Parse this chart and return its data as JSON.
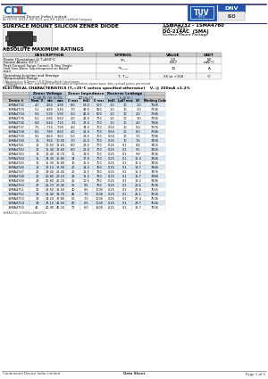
{
  "title_left": "SURFACE MOUNT SILICON ZENER DIODE",
  "title_right_line1": "1SMA4732 - 1SMA4760",
  "title_right_line2": "(4V7 - 68V)",
  "title_right_line3": "DO-214AC  (SMA)",
  "title_right_line4": "Surface Mount Package",
  "company_name": "Continental Device India Limited",
  "company_sub": "An ISO/TS 16949, ISO 9001 and ISO 14001 Certified Company",
  "abs_max_title": "ABSOLUTE MAXIMUM RATINGS",
  "abs_headers": [
    "DESCRIPTION",
    "SYMBOL",
    "VALUE",
    "UNIT"
  ],
  "footnote1": "* Mounted on 5.0mm² ( 0.013mm thick) land areas",
  "footnote2": "** Measured on 8.3ms, and single half sine-wave or equivalent square wave, duty cycle≤4 pulses per minute maximum",
  "elec_title": "ELECTRICAL CHARACTERISTICS (Tₐ=25°C unless specified otherwise)    V₂ @ 200mA ±1.2%",
  "data_rows": [
    [
      "1SMA4732",
      "4.7",
      "4.50",
      "4.90",
      "8.0",
      "53.0",
      "500",
      "1.0",
      "10",
      "1.0",
      "7326"
    ],
    [
      "1SMA4733",
      "5.1",
      "4.80",
      "5.40",
      "7.0",
      "49.0",
      "550",
      "1.0",
      "10",
      "1.0",
      "7336"
    ],
    [
      "1SMA4734",
      "5.6",
      "5.30",
      "5.90",
      "5.0",
      "46.0",
      "600",
      "1.0",
      "10",
      "2.0",
      "7346"
    ],
    [
      "1SMA4735",
      "6.2",
      "5.80",
      "6.60",
      "2.0",
      "41.0",
      "700",
      "1.0",
      "10",
      "3.0",
      "7356"
    ],
    [
      "1SMA4736",
      "6.8",
      "6.40",
      "7.10",
      "3.5",
      "37.0",
      "700",
      "1.0",
      "10",
      "4.0",
      "7366"
    ],
    [
      "1SMA4737",
      "7.5",
      "7.10",
      "7.90",
      "4.0",
      "34.0",
      "700",
      "0.50",
      "10",
      "5.0",
      "7376"
    ],
    [
      "1SMA4738",
      "8.2",
      "7.80",
      "8.60",
      "4.5",
      "31.0",
      "700",
      "0.50",
      "10",
      "6.0",
      "7386"
    ],
    [
      "1SMA4739",
      "9.1",
      "8.60",
      "9.60",
      "5.0",
      "28.0",
      "700",
      "0.50",
      "10",
      "7.0",
      "7396"
    ],
    [
      "1SMA4740",
      "10",
      "9.50",
      "10.50",
      "7.0",
      "25.0",
      "700",
      "0.25",
      "10",
      "7.6",
      "7406"
    ],
    [
      "1SMA4741",
      "11",
      "10.50",
      "11.60",
      "8.0",
      "23.0",
      "700",
      "0.25",
      "0.1",
      "8.4",
      "7416"
    ],
    [
      "1SMA4742",
      "12",
      "11.40",
      "12.60",
      "8.0",
      "21.0",
      "700",
      "0.25",
      "0.1",
      "9.1",
      "7426"
    ],
    [
      "1SMA4743",
      "13",
      "12.40",
      "13.70",
      "10",
      "19.0",
      "700",
      "0.25",
      "0.1",
      "9.9",
      "7436"
    ],
    [
      "1SMA4744",
      "15",
      "14.30",
      "15.80",
      "14",
      "17.0",
      "700",
      "0.25",
      "0.1",
      "11.4",
      "7446"
    ],
    [
      "1SMA4745",
      "16",
      "15.30",
      "16.80",
      "16",
      "15.5",
      "700",
      "0.25",
      "0.1",
      "12.2",
      "7456"
    ],
    [
      "1SMA4746",
      "18",
      "17.10",
      "18.90",
      "20",
      "14.0",
      "750",
      "0.25",
      "0.1",
      "13.7",
      "7466"
    ],
    [
      "1SMA4747",
      "20",
      "19.00",
      "21.00",
      "22",
      "12.5",
      "750",
      "0.25",
      "0.1",
      "15.3",
      "7476"
    ],
    [
      "1SMA4748",
      "22",
      "20.80",
      "23.10",
      "23",
      "11.5",
      "750",
      "0.25",
      "0.1",
      "16.7",
      "7486"
    ],
    [
      "1SMA4749",
      "24",
      "22.80",
      "25.20",
      "25",
      "10.5",
      "750",
      "0.25",
      "0.1",
      "18.2",
      "7496"
    ],
    [
      "1SMA4750",
      "27",
      "25.70",
      "28.40",
      "35",
      "9.5",
      "750",
      "0.25",
      "0.1",
      "20.6",
      "7506"
    ],
    [
      "1SMA4751",
      "30",
      "28.50",
      "31.50",
      "40",
      "8.5",
      "1000",
      "0.25",
      "0.1",
      "22.8",
      "7516"
    ],
    [
      "1SMA4752",
      "33",
      "31.40",
      "34.70",
      "45",
      "7.5",
      "1000",
      "0.25",
      "0.1",
      "25.1",
      "7526"
    ],
    [
      "1SMA4753",
      "36",
      "34.20",
      "37.80",
      "50",
      "7.0",
      "1000",
      "0.25",
      "0.1",
      "27.4",
      "7536"
    ],
    [
      "1SMA4754",
      "39",
      "37.10",
      "41.00",
      "60",
      "6.5",
      "1000",
      "0.25",
      "0.1",
      "29.7",
      "7546"
    ],
    [
      "1SMA4755",
      "43",
      "40.90",
      "45.20",
      "70",
      "6.0",
      "1500",
      "0.25",
      "0.1",
      "32.7",
      "7556"
    ]
  ],
  "footer_left": "Continental Device India Limited",
  "footer_center": "Data Sheet",
  "footer_right": "Page 1 of 5",
  "doc_number": "1SMA4732_4760Rev0802050",
  "bg_color": "#ffffff",
  "zener_header_bg": "#b8cce0",
  "impedance_header_bg": "#dce8f0",
  "leakage_header_bg": "#b8cce0",
  "col_header_bg": "#cccccc"
}
